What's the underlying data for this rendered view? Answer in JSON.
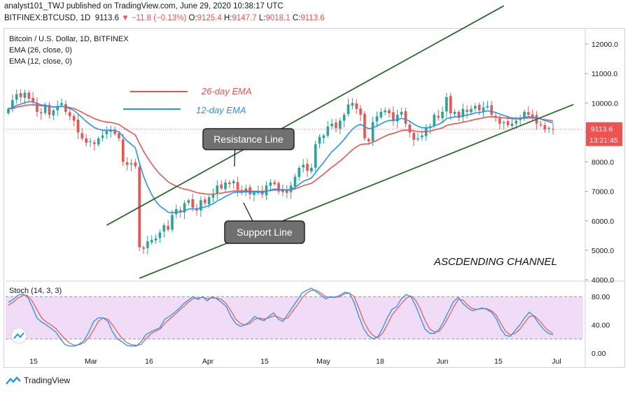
{
  "header": {
    "line1_user": "analyst101_TWJ",
    "line1_text": "published on TradingView.com, June 29, 2020 10:38:17 UTC",
    "symbol": "BITFINEX:BTCUSD, 1D",
    "price": "9113.6",
    "change": "▼ −11.8 (−0.13%)",
    "o_label": "O:",
    "o": "9125.4",
    "h_label": "H:",
    "h": "9147.7",
    "l_label": "L:",
    "l": "9018.1",
    "c_label": "C:",
    "c": "9113.6"
  },
  "legend": {
    "title": "Bitcoin / U.S. Dollar, 1D, BITFINEX",
    "ema26": "EMA (26, close, 0)",
    "ema12": "EMA (12, close, 0)"
  },
  "annotations": {
    "ema26_label": "26-day EMA",
    "ema12_label": "12-day EMA",
    "resistance": "Resistance Line",
    "support": "Support Line",
    "channel": "ASCDENDING CHANNEL"
  },
  "stoch": {
    "label": "Stoch (14, 3, 3)"
  },
  "price_tag": {
    "price": "9113.6",
    "time": "13:21:45"
  },
  "footer": {
    "brand": "TradingView"
  },
  "colors": {
    "up": "#26a69a",
    "down": "#ef5350",
    "ema26": "#ef5350",
    "ema12": "#2196f3",
    "trend": "#2e6b2e",
    "stoch_k": "#2196f3",
    "stoch_d": "#ef5350",
    "stoch_band": "#e1bee7"
  },
  "chart_data": {
    "type": "candlestick",
    "price_axis": {
      "min": 4000,
      "max": 12500,
      "ticks": [
        4000,
        5000,
        6000,
        7000,
        8000,
        9000,
        10000,
        11000,
        12000
      ],
      "tick_labels": [
        "4000.0",
        "5000.0",
        "6000.0",
        "7000.0",
        "8000.0",
        "9000.0",
        "10000.0",
        "11000.0",
        "12000.0"
      ]
    },
    "stoch_axis": {
      "min": 0,
      "max": 100,
      "ticks": [
        0,
        40,
        80
      ],
      "tick_labels": [
        "0.00",
        "40.00",
        "80.00"
      ],
      "band": [
        20,
        80
      ]
    },
    "x_axis": {
      "labels": [
        "15",
        "Mar",
        "16",
        "Apr",
        "15",
        "May",
        "18",
        "Jun",
        "15",
        "Jul"
      ]
    },
    "series": [
      {
        "name": "Price",
        "values": [
          9800,
          10100,
          10300,
          10200,
          10350,
          10150,
          10050,
          9700,
          9650,
          9900,
          9600,
          9750,
          9900,
          10000,
          9700,
          9550,
          9400,
          9000,
          8800,
          8650,
          8700,
          8600,
          8800,
          8900,
          9050,
          9100,
          8950,
          8800,
          8000,
          7900,
          7950,
          7850,
          5100,
          5050,
          5300,
          5350,
          5400,
          5600,
          5850,
          5700,
          6200,
          6400,
          6300,
          6600,
          6700,
          6450,
          6350,
          6700,
          6600,
          6800,
          6900,
          7200,
          7100,
          7300,
          7250,
          7350,
          7050,
          6950,
          7100,
          6900,
          6950,
          7000,
          6900,
          7200,
          7300,
          7250,
          7000,
          7050,
          6950,
          7200,
          7500,
          7800,
          7900,
          7700,
          7800,
          8600,
          8850,
          8900,
          9200,
          9300,
          9150,
          9400,
          9600,
          9950,
          10000,
          9800,
          9600,
          8800,
          8700,
          9350,
          9550,
          9700,
          9750,
          9650,
          9400,
          9600,
          9700,
          9300,
          9000,
          8750,
          8800,
          8900,
          9150,
          9200,
          9600,
          9500,
          9700,
          10200,
          9650,
          9700,
          9500,
          9800,
          9700,
          9800,
          9900,
          9750,
          9850,
          9900,
          9600,
          9500,
          9300,
          9350,
          9250,
          9300,
          9400,
          9500,
          9700,
          9600,
          9550,
          9300,
          9250,
          9100,
          9150,
          9110
        ]
      },
      {
        "name": "26-day EMA"
      },
      {
        "name": "12-day EMA"
      }
    ],
    "stochastic": {
      "k": [
        72,
        76,
        82,
        84,
        80,
        66,
        50,
        44,
        40,
        35,
        30,
        20,
        12,
        10,
        10,
        13,
        18,
        30,
        45,
        50,
        50,
        45,
        30,
        20,
        16,
        11,
        10,
        10,
        16,
        26,
        30,
        33,
        36,
        48,
        52,
        57,
        63,
        70,
        75,
        80,
        76,
        80,
        74,
        80,
        77,
        72,
        66,
        52,
        42,
        38,
        40,
        45,
        52,
        48,
        46,
        52,
        57,
        48,
        45,
        55,
        65,
        75,
        85,
        89,
        92,
        87,
        82,
        77,
        80,
        79,
        82,
        86,
        85,
        72,
        52,
        35,
        25,
        20,
        23,
        35,
        50,
        62,
        66,
        77,
        83,
        80,
        67,
        50,
        34,
        28,
        28,
        34,
        46,
        60,
        73,
        79,
        70,
        64,
        60,
        62,
        64,
        62,
        58,
        49,
        34,
        25,
        24,
        32,
        40,
        50,
        58,
        52,
        42,
        34,
        28,
        26
      ],
      "d": [
        68,
        72,
        78,
        82,
        82,
        74,
        62,
        50,
        44,
        40,
        35,
        27,
        20,
        14,
        11,
        12,
        15,
        22,
        33,
        45,
        50,
        48,
        40,
        30,
        21,
        15,
        12,
        11,
        12,
        20,
        27,
        31,
        34,
        42,
        48,
        54,
        60,
        66,
        72,
        77,
        78,
        79,
        77,
        78,
        78,
        76,
        70,
        60,
        48,
        42,
        40,
        42,
        48,
        50,
        48,
        50,
        53,
        51,
        48,
        50,
        59,
        68,
        78,
        85,
        89,
        89,
        85,
        80,
        79,
        79,
        80,
        84,
        85,
        80,
        64,
        46,
        33,
        25,
        22,
        28,
        40,
        54,
        62,
        70,
        78,
        81,
        75,
        62,
        46,
        34,
        30,
        31,
        40,
        52,
        65,
        76,
        75,
        68,
        63,
        62,
        63,
        63,
        60,
        54,
        42,
        31,
        26,
        28,
        34,
        43,
        52,
        53,
        47,
        39,
        32,
        28
      ]
    },
    "channel_price": {
      "upper": [
        [
          5850,
          13300
        ]
      ],
      "lower": [
        [
          4050,
          9950
        ]
      ]
    }
  }
}
